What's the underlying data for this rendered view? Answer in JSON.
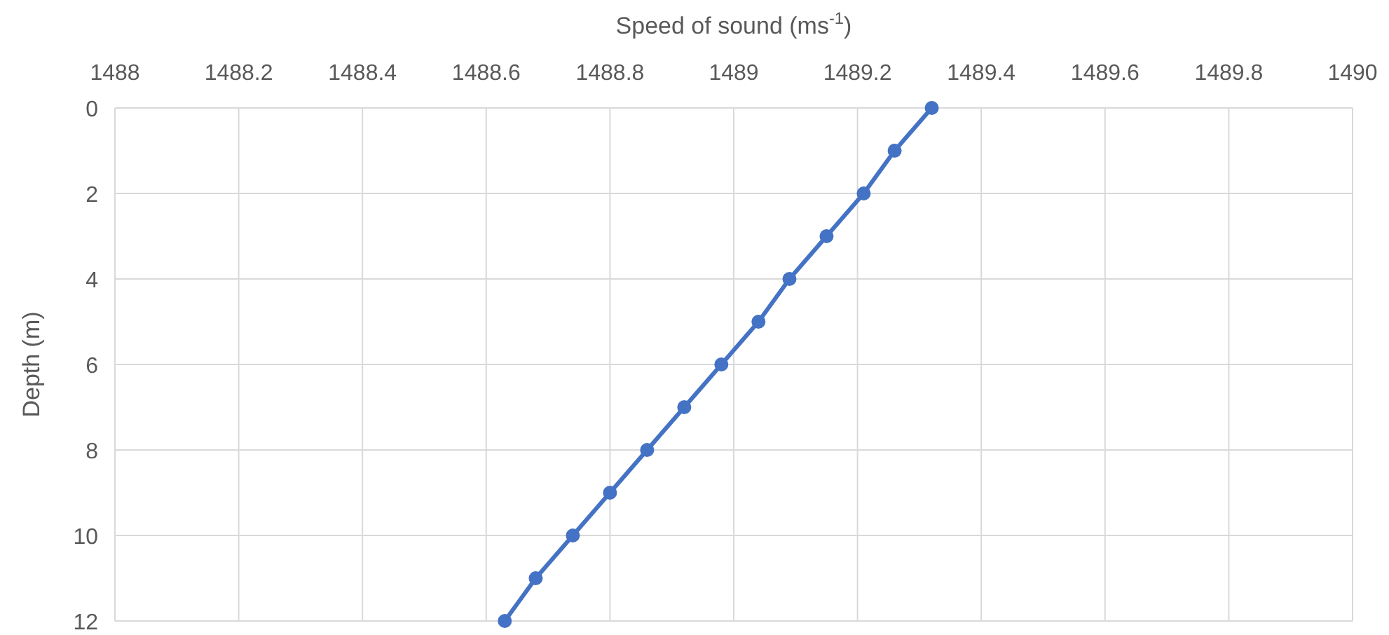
{
  "chart_data": {
    "type": "line",
    "xlabel": "Speed of sound (ms$^{-1}$)",
    "ylabel": "Depth (m)",
    "x": [
      1489.32,
      1489.26,
      1489.21,
      1489.15,
      1489.09,
      1489.04,
      1488.98,
      1488.92,
      1488.86,
      1488.8,
      1488.74,
      1488.68,
      1488.63
    ],
    "values": [
      0,
      1,
      2,
      3,
      4,
      5,
      6,
      7,
      8,
      9,
      10,
      11,
      12
    ],
    "color": "#4472c4",
    "marker": "circle",
    "line_style": "solid",
    "grid": true,
    "xlim": [
      1488,
      1490
    ],
    "xticks": [
      1488,
      1488.2,
      1488.4,
      1488.6,
      1488.8,
      1489,
      1489.2,
      1489.4,
      1489.6,
      1489.8,
      1490
    ],
    "ylim": [
      12,
      0
    ],
    "yticks": [
      0,
      2,
      4,
      6,
      8,
      10,
      12
    ]
  }
}
